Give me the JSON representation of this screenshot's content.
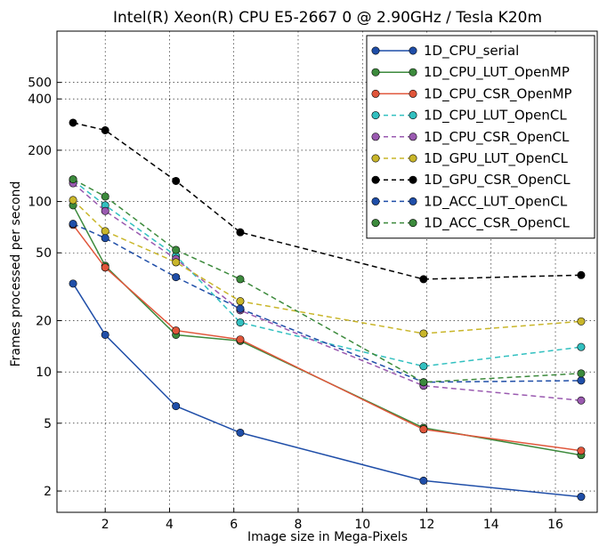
{
  "chart_data": {
    "type": "line",
    "title": "Intel(R) Xeon(R) CPU E5-2667 0 @ 2.90GHz / Tesla K20m",
    "xlabel": "Image size in Mega-Pixels",
    "ylabel": "Frames processed per second",
    "xlim": [
      0.5,
      17.3
    ],
    "ylim": [
      1.5,
      1000
    ],
    "yscale": "log",
    "grid": true,
    "legend_position": "top-right",
    "x": [
      1,
      2,
      4.2,
      6.2,
      11.9,
      16.8
    ],
    "xticks": [
      2,
      4,
      6,
      8,
      10,
      12,
      14,
      16
    ],
    "xtick_labels": [
      "2",
      "4",
      "6",
      "8",
      "10",
      "12",
      "14",
      "16"
    ],
    "yticks": [
      2,
      5,
      10,
      20,
      50,
      100,
      200,
      400,
      500
    ],
    "ytick_labels": [
      "2",
      "5",
      "10",
      "20",
      "50",
      "100",
      "200",
      "400",
      "500"
    ],
    "series": [
      {
        "name": "1D_CPU_serial",
        "color": "#1f4ea8",
        "dash": false,
        "values": [
          33,
          16.5,
          6.3,
          4.4,
          2.3,
          1.85
        ]
      },
      {
        "name": "1D_CPU_LUT_OpenMP",
        "color": "#3c8a3c",
        "dash": false,
        "values": [
          95,
          42,
          16.5,
          15.2,
          4.7,
          3.25
        ]
      },
      {
        "name": "1D_CPU_CSR_OpenMP",
        "color": "#e0553a",
        "dash": false,
        "values": [
          73,
          41,
          17.5,
          15.5,
          4.6,
          3.45
        ]
      },
      {
        "name": "1D_CPU_LUT_OpenCL",
        "color": "#32c0c0",
        "dash": true,
        "values": [
          133,
          95,
          48,
          19.5,
          10.8,
          14
        ]
      },
      {
        "name": "1D_CPU_CSR_OpenCL",
        "color": "#9a5ab0",
        "dash": true,
        "values": [
          128,
          88,
          46,
          23,
          8.3,
          6.8
        ]
      },
      {
        "name": "1D_GPU_LUT_OpenCL",
        "color": "#c9b62a",
        "dash": true,
        "values": [
          102,
          67,
          44,
          26,
          16.8,
          19.8
        ]
      },
      {
        "name": "1D_GPU_CSR_OpenCL",
        "color": "#000000",
        "dash": true,
        "values": [
          290,
          262,
          132,
          66,
          35,
          37
        ]
      },
      {
        "name": "1D_ACC_LUT_OpenCL",
        "color": "#1f4ea8",
        "dash": true,
        "values": [
          74,
          61,
          36,
          23.5,
          8.7,
          8.9
        ]
      },
      {
        "name": "1D_ACC_CSR_OpenCL",
        "color": "#3c8a3c",
        "dash": true,
        "values": [
          135,
          107,
          52,
          35,
          8.7,
          9.8
        ]
      }
    ]
  }
}
